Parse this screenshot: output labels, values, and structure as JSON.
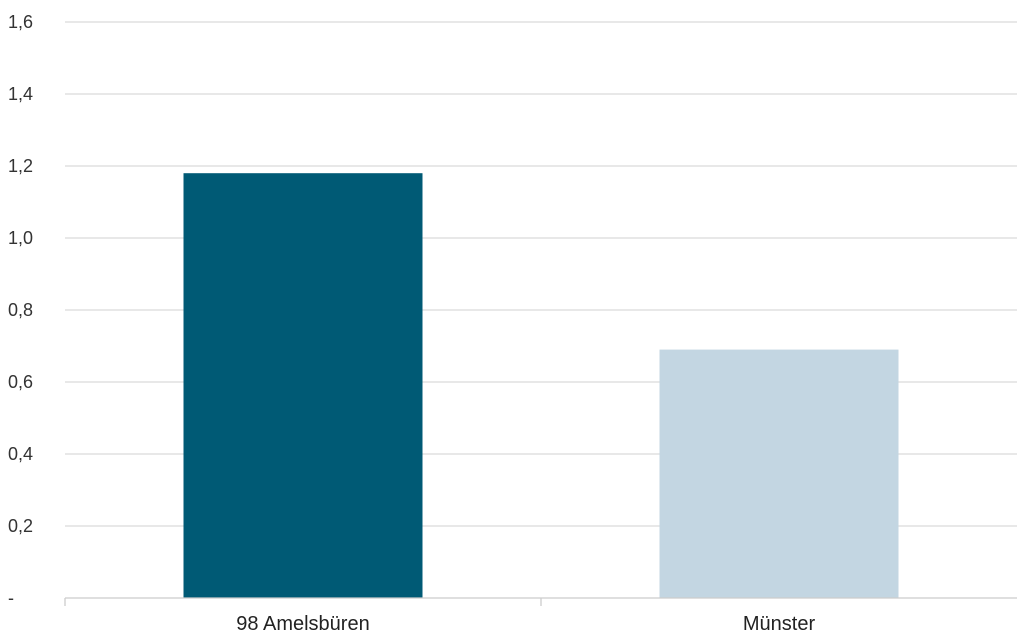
{
  "chart_data": {
    "type": "bar",
    "categories": [
      "98 Amelsbüren",
      "Münster"
    ],
    "values": [
      1.18,
      0.69
    ],
    "colors": [
      "#005a75",
      "#c3d6e2"
    ],
    "ylim": [
      0,
      1.6
    ],
    "yticks": [
      0,
      0.2,
      0.4,
      0.6,
      0.8,
      1.0,
      1.2,
      1.4,
      1.6
    ],
    "ytick_labels": [
      "-",
      "0,2",
      "0,4",
      "0,6",
      "0,8",
      "1,0",
      "1,2",
      "1,4",
      "1,6"
    ],
    "grid": true,
    "legend": "none"
  }
}
